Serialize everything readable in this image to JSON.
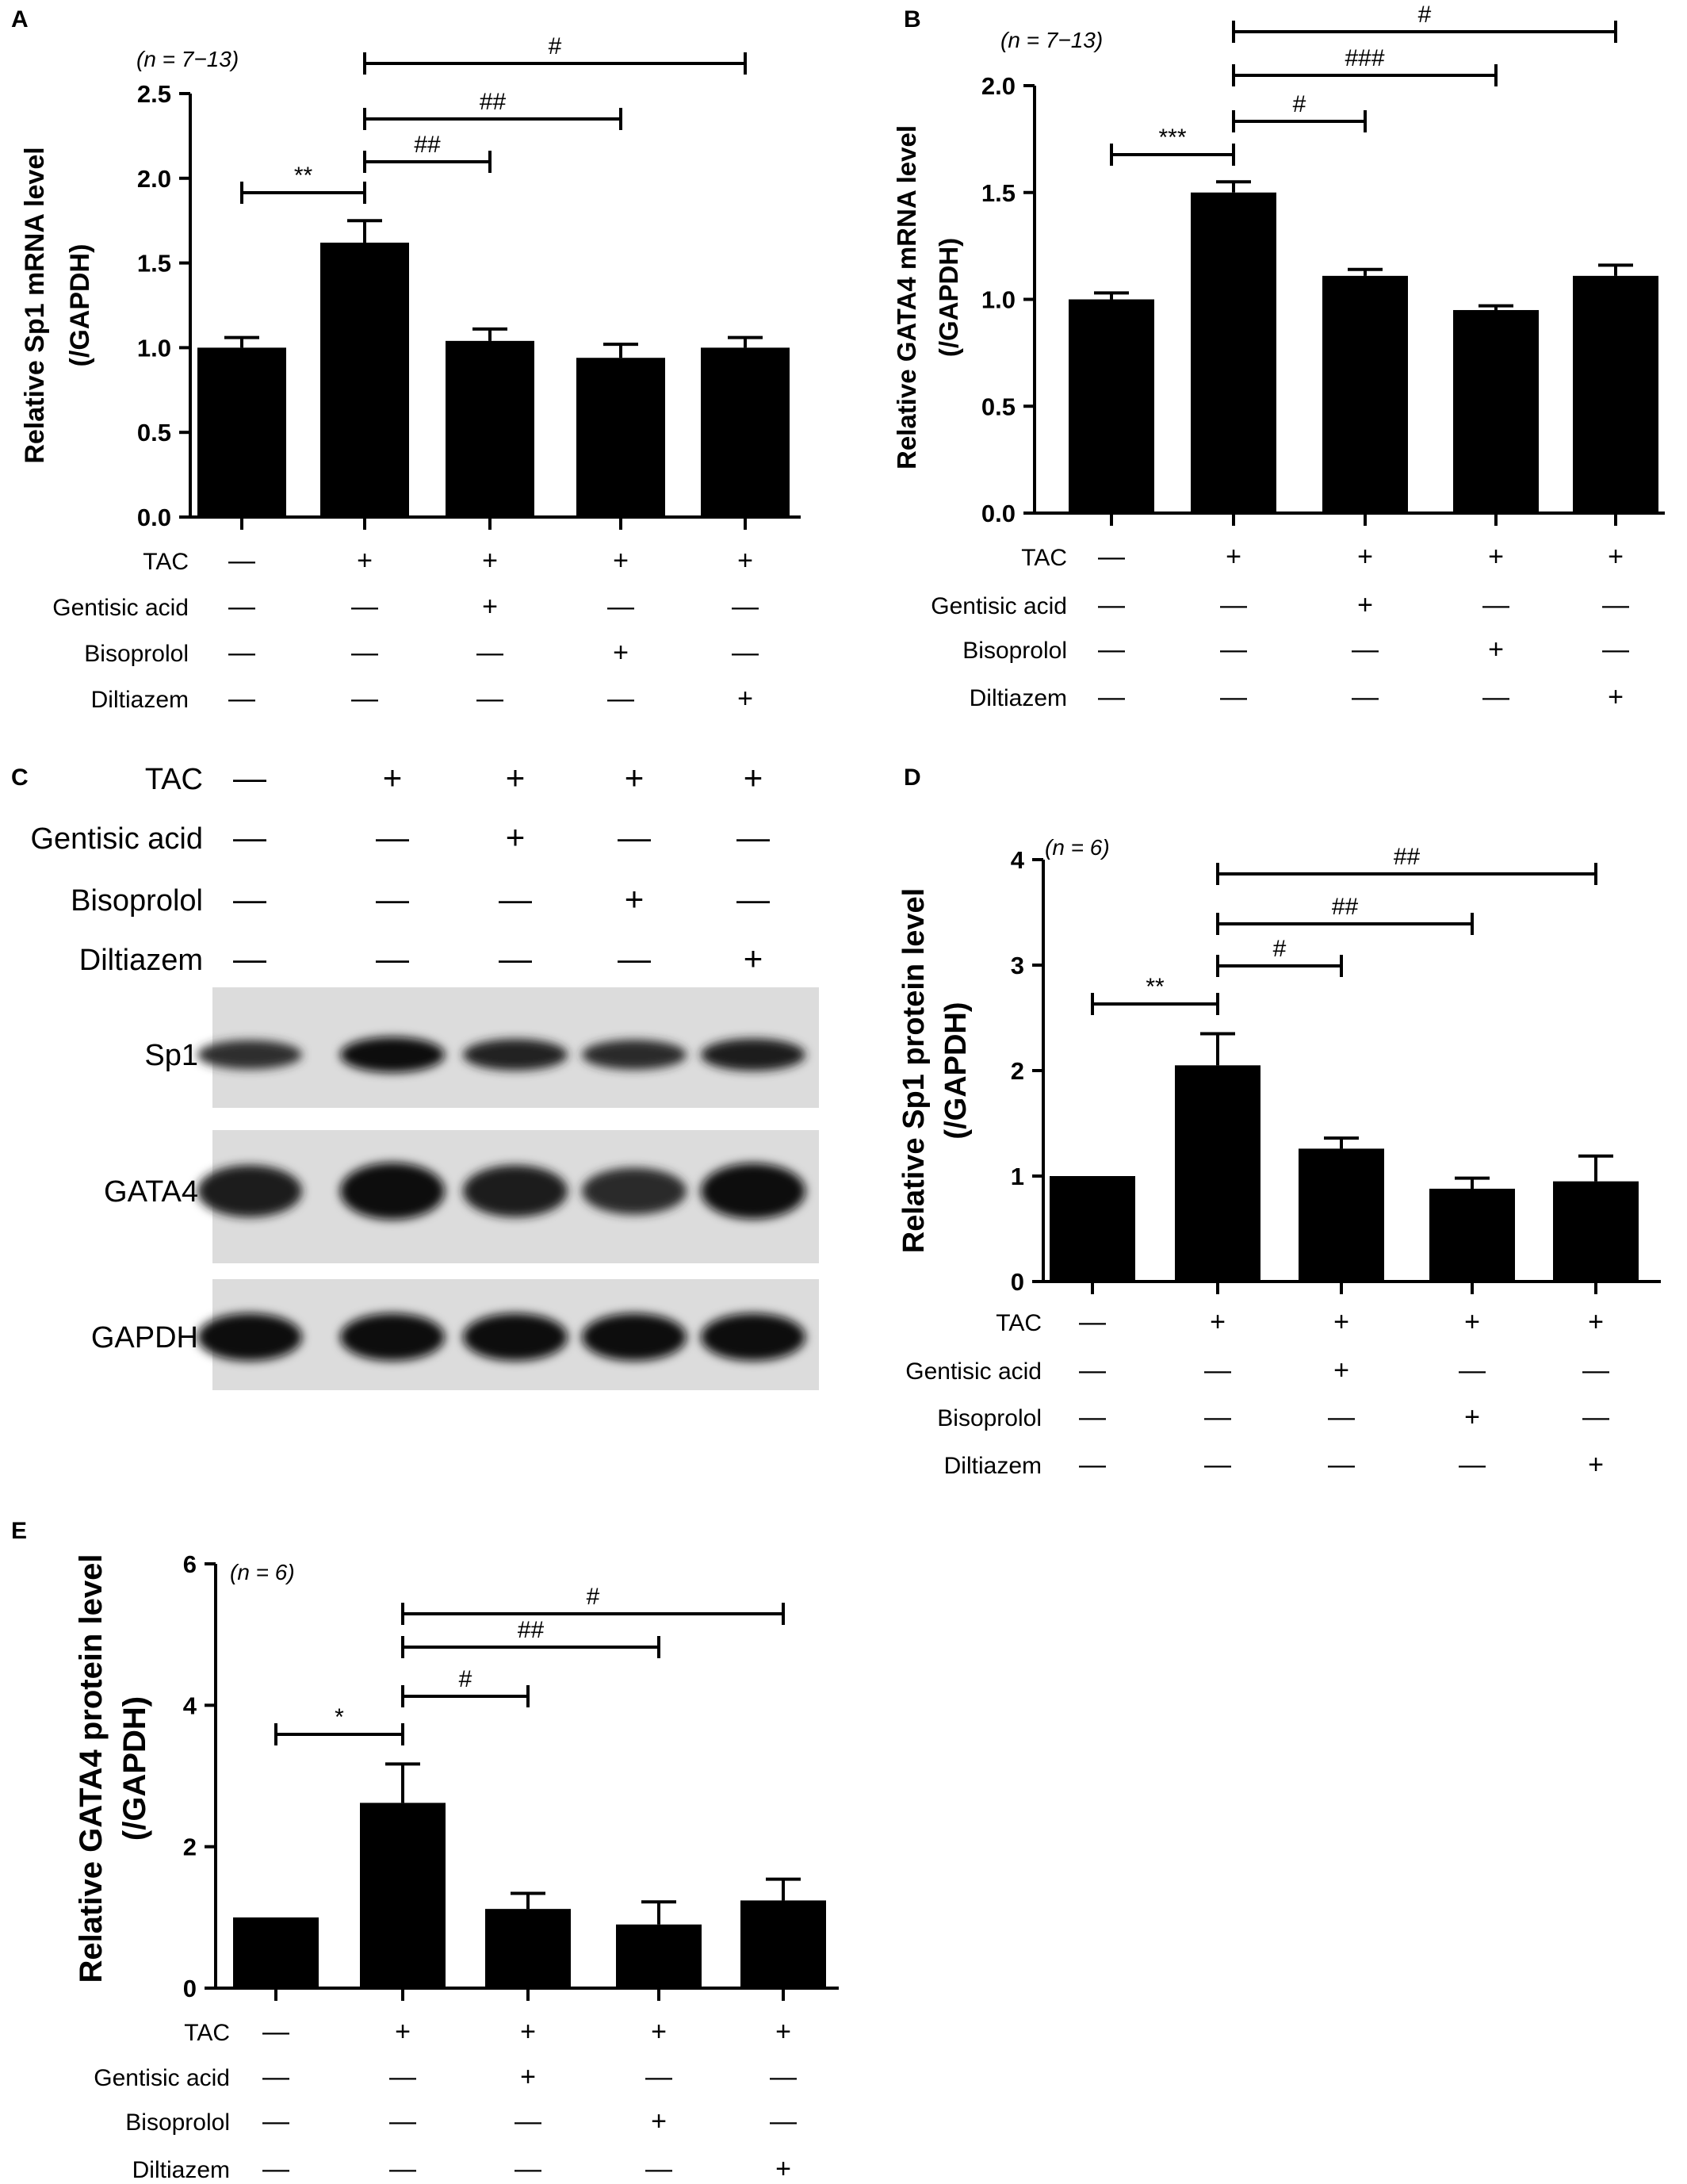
{
  "panels": [
    {
      "letter": "A",
      "n_label": "(n = 7−13)",
      "ylabel_lines": [
        "Relative Sp1 mRNA level",
        "(/GAPDH)"
      ],
      "chart_data": {
        "type": "bar",
        "ylim": [
          0,
          2.5
        ],
        "yticks": [
          "0.0",
          "0.5",
          "1.0",
          "1.5",
          "2.0",
          "2.5"
        ],
        "values": [
          1.0,
          1.62,
          1.04,
          0.94,
          1.0
        ],
        "errors": [
          0.06,
          0.13,
          0.07,
          0.08,
          0.06
        ],
        "significance": [
          {
            "from": 0,
            "to": 1,
            "label": "**"
          },
          {
            "from": 1,
            "to": 2,
            "label": "##"
          },
          {
            "from": 1,
            "to": 3,
            "label": "##"
          },
          {
            "from": 1,
            "to": 4,
            "label": "#"
          }
        ]
      }
    },
    {
      "letter": "B",
      "n_label": "(n = 7−13)",
      "ylabel_lines": [
        "Relative GATA4 mRNA level",
        "(/GAPDH)"
      ],
      "chart_data": {
        "type": "bar",
        "ylim": [
          0,
          2.0
        ],
        "yticks": [
          "0.0",
          "0.5",
          "1.0",
          "1.5",
          "2.0"
        ],
        "values": [
          1.0,
          1.5,
          1.11,
          0.95,
          1.11
        ],
        "errors": [
          0.03,
          0.05,
          0.03,
          0.02,
          0.05
        ],
        "significance": [
          {
            "from": 0,
            "to": 1,
            "label": "***"
          },
          {
            "from": 1,
            "to": 2,
            "label": "#"
          },
          {
            "from": 1,
            "to": 3,
            "label": "###"
          },
          {
            "from": 1,
            "to": 4,
            "label": "#"
          }
        ]
      }
    },
    {
      "letter": "D",
      "n_label": "(n = 6)",
      "ylabel_lines": [
        "Relative Sp1 protein level",
        "(/GAPDH)"
      ],
      "chart_data": {
        "type": "bar",
        "ylim": [
          0,
          4
        ],
        "yticks": [
          "0",
          "1",
          "2",
          "3",
          "4"
        ],
        "values": [
          1.0,
          2.05,
          1.26,
          0.88,
          0.95
        ],
        "errors": [
          0,
          0.3,
          0.1,
          0.1,
          0.24
        ],
        "significance": [
          {
            "from": 0,
            "to": 1,
            "label": "**"
          },
          {
            "from": 1,
            "to": 2,
            "label": "#"
          },
          {
            "from": 1,
            "to": 3,
            "label": "##"
          },
          {
            "from": 1,
            "to": 4,
            "label": "##"
          }
        ]
      }
    },
    {
      "letter": "E",
      "n_label": "(n = 6)",
      "ylabel_lines": [
        "Relative GATA4 protein level",
        "(/GAPDH)"
      ],
      "chart_data": {
        "type": "bar",
        "ylim": [
          0,
          6
        ],
        "yticks": [
          "0",
          "2",
          "4",
          "6"
        ],
        "values": [
          1.0,
          2.62,
          1.12,
          0.9,
          1.24
        ],
        "errors": [
          0,
          0.55,
          0.22,
          0.32,
          0.3
        ],
        "significance": [
          {
            "from": 0,
            "to": 1,
            "label": "*"
          },
          {
            "from": 1,
            "to": 2,
            "label": "#"
          },
          {
            "from": 1,
            "to": 3,
            "label": "##"
          },
          {
            "from": 1,
            "to": 4,
            "label": "#"
          }
        ]
      }
    }
  ],
  "conditions": {
    "rows": [
      "TAC",
      "Gentisic acid",
      "Bisoprolol",
      "Diltiazem"
    ],
    "plus": "+",
    "minus": "—",
    "pattern": [
      [
        0,
        1,
        1,
        1,
        1
      ],
      [
        0,
        0,
        1,
        0,
        0
      ],
      [
        0,
        0,
        0,
        1,
        0
      ],
      [
        0,
        0,
        0,
        0,
        1
      ]
    ]
  },
  "blot": {
    "letter": "C",
    "bands": [
      {
        "label": "Sp1",
        "intensity": [
          0.55,
          0.95,
          0.7,
          0.6,
          0.75
        ]
      },
      {
        "label": "GATA4",
        "intensity": [
          0.8,
          1.0,
          0.8,
          0.6,
          0.95
        ]
      },
      {
        "label": "GAPDH",
        "intensity": [
          1.0,
          1.0,
          1.0,
          1.0,
          1.0
        ]
      }
    ]
  }
}
